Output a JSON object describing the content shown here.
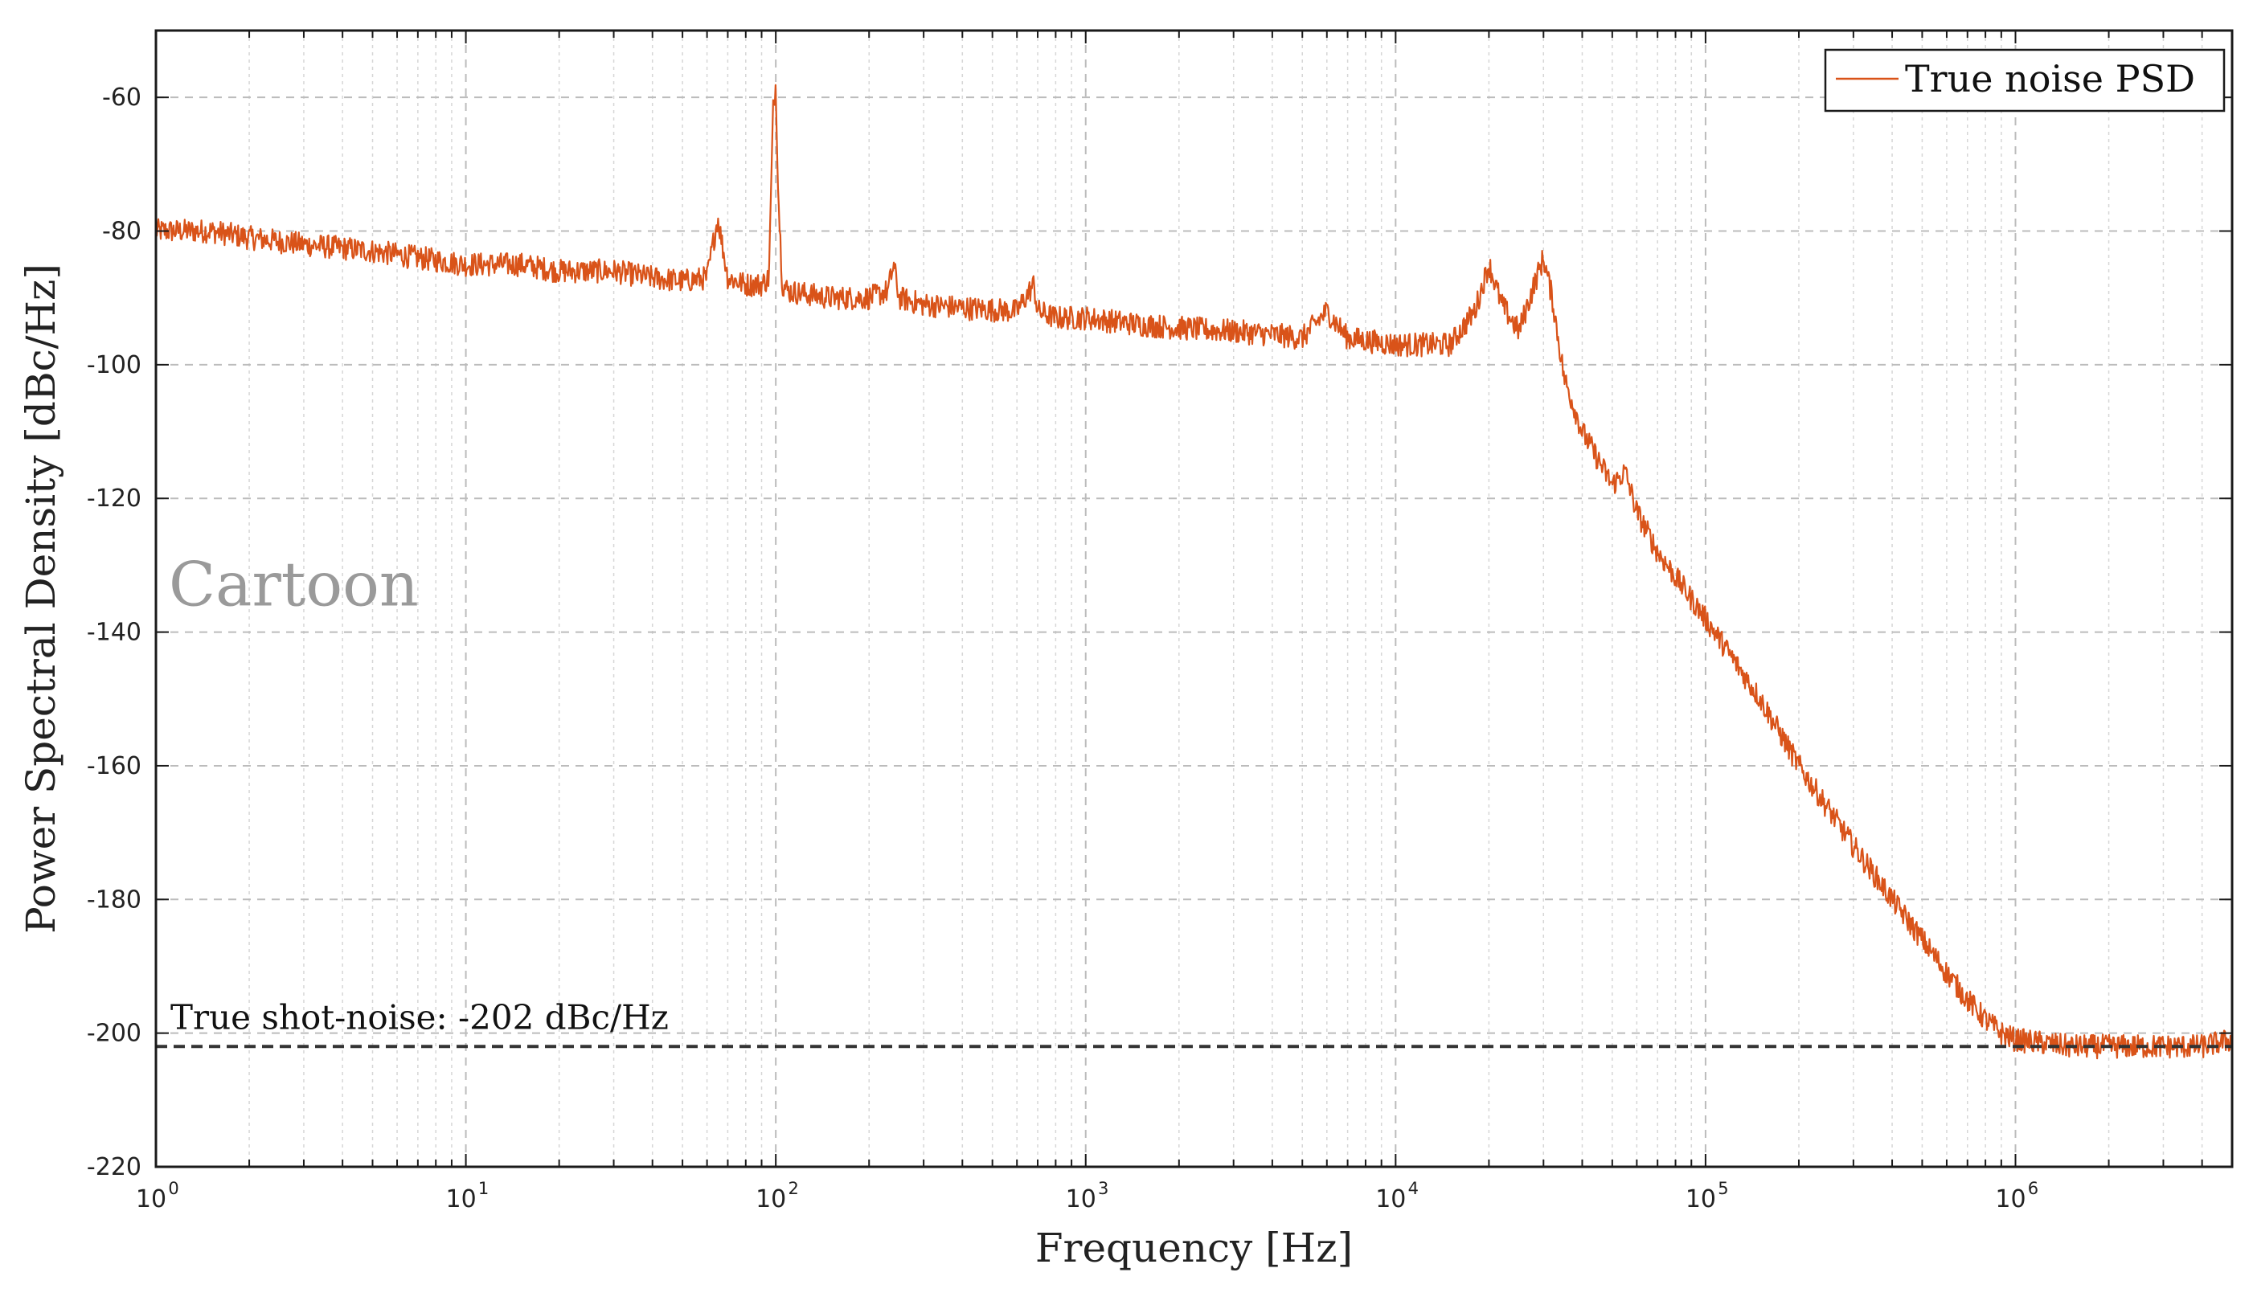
{
  "chart_data": {
    "type": "line",
    "xscale": "log",
    "xlabel": "Frequency [Hz]",
    "ylabel": "Power Spectral Density [dBc/Hz]",
    "xlim": [
      1,
      5000000
    ],
    "ylim": [
      -220,
      -50
    ],
    "x_ticks": [
      {
        "base": "10",
        "exp": "0"
      },
      {
        "base": "10",
        "exp": "1"
      },
      {
        "base": "10",
        "exp": "2"
      },
      {
        "base": "10",
        "exp": "3"
      },
      {
        "base": "10",
        "exp": "4"
      },
      {
        "base": "10",
        "exp": "5"
      },
      {
        "base": "10",
        "exp": "6"
      }
    ],
    "y_ticks": [
      "-60",
      "-80",
      "-100",
      "-120",
      "-140",
      "-160",
      "-180",
      "-200",
      "-220"
    ],
    "grid": true,
    "legend_position": "top-right",
    "series": [
      {
        "name": "True noise PSD",
        "color": "#d95319",
        "x": [
          1,
          1.5,
          2,
          3,
          5,
          7,
          10,
          15,
          20,
          30,
          40,
          50,
          60,
          65,
          70,
          80,
          90,
          95,
          98,
          100,
          102,
          105,
          110,
          150,
          200,
          230,
          240,
          250,
          300,
          400,
          600,
          680,
          700,
          800,
          1000,
          1500,
          2000,
          3000,
          4000,
          5000,
          6000,
          7000,
          10000,
          15000,
          18000,
          20000,
          22000,
          25000,
          28000,
          30000,
          32000,
          35000,
          40000,
          50000,
          55000,
          60000,
          70000,
          100000,
          150000,
          200000,
          300000,
          400000,
          500000,
          600000,
          700000,
          800000,
          900000,
          1000000,
          1500000,
          2000000,
          3000000,
          4000000,
          5000000
        ],
        "y": [
          -80,
          -80,
          -81,
          -82,
          -83,
          -84,
          -85,
          -85,
          -86,
          -86,
          -87,
          -87.5,
          -87,
          -78,
          -87,
          -88,
          -88,
          -87,
          -62,
          -58,
          -75,
          -88,
          -89,
          -90,
          -90,
          -89,
          -85,
          -90,
          -91,
          -91.5,
          -92,
          -88,
          -92,
          -93,
          -93,
          -94,
          -94.5,
          -95,
          -95.5,
          -96,
          -92,
          -96,
          -97,
          -97,
          -92,
          -85,
          -91,
          -95,
          -88,
          -84,
          -90,
          -102,
          -110,
          -118,
          -116,
          -122,
          -128,
          -138,
          -150,
          -160,
          -172,
          -180,
          -186,
          -191,
          -195,
          -198,
          -200,
          -201,
          -202,
          -202,
          -202,
          -202,
          -201
        ]
      }
    ],
    "hline": {
      "value": -202,
      "label": "True shot-noise: -202 dBc/Hz",
      "color": "#333333"
    },
    "annotations": [
      {
        "text": "Cartoon",
        "color": "#9a9a9a"
      }
    ]
  }
}
